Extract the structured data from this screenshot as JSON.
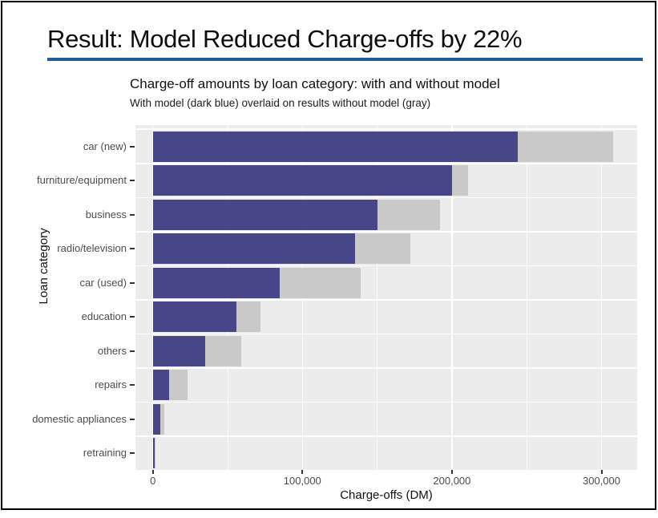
{
  "slide": {
    "title": "Result: Model Reduced Charge-offs by 22%"
  },
  "chart": {
    "title": "Charge-off amounts by loan category: with and without model",
    "subtitle": "With model (dark blue) overlaid on results without model (gray)",
    "xlabel": "Charge-offs (DM)",
    "ylabel": "Loan category"
  },
  "chart_data": {
    "type": "bar",
    "orientation": "horizontal",
    "title": "Charge-off amounts by loan category: with and without model",
    "subtitle": "With model (dark blue) overlaid on results without model (gray)",
    "xlabel": "Charge-offs (DM)",
    "ylabel": "Loan category",
    "categories": [
      "car (new)",
      "furniture/equipment",
      "business",
      "radio/television",
      "car (used)",
      "education",
      "others",
      "repairs",
      "domestic appliances",
      "retraining"
    ],
    "series": [
      {
        "name": "without model (gray)",
        "color": "#C9C9C9",
        "values": [
          308000,
          211000,
          192000,
          172000,
          139000,
          72000,
          59000,
          23000,
          7500,
          2000
        ]
      },
      {
        "name": "with model (dark blue)",
        "color": "#474689",
        "values": [
          244000,
          200000,
          150000,
          135000,
          85000,
          56000,
          35000,
          11000,
          5000,
          1500
        ]
      }
    ],
    "x_ticks": [
      {
        "label": "0",
        "value": 0
      },
      {
        "label": "100,000",
        "value": 100000
      },
      {
        "label": "200,000",
        "value": 200000
      },
      {
        "label": "300,000",
        "value": 300000
      }
    ],
    "x_minor_ticks": [
      50000,
      150000,
      250000
    ],
    "xlim": [
      -11600,
      323500
    ],
    "grid": true,
    "legend_position": "none",
    "panel_background": "#ECECEC"
  },
  "colors": {
    "bar_with_model": "#474689",
    "bar_without_model": "#C9C9C9",
    "panel_background": "#ECECEC",
    "title_rule": "#1D5C9E",
    "axis_text": "#4d4d4d",
    "frame_border": "#000000"
  }
}
